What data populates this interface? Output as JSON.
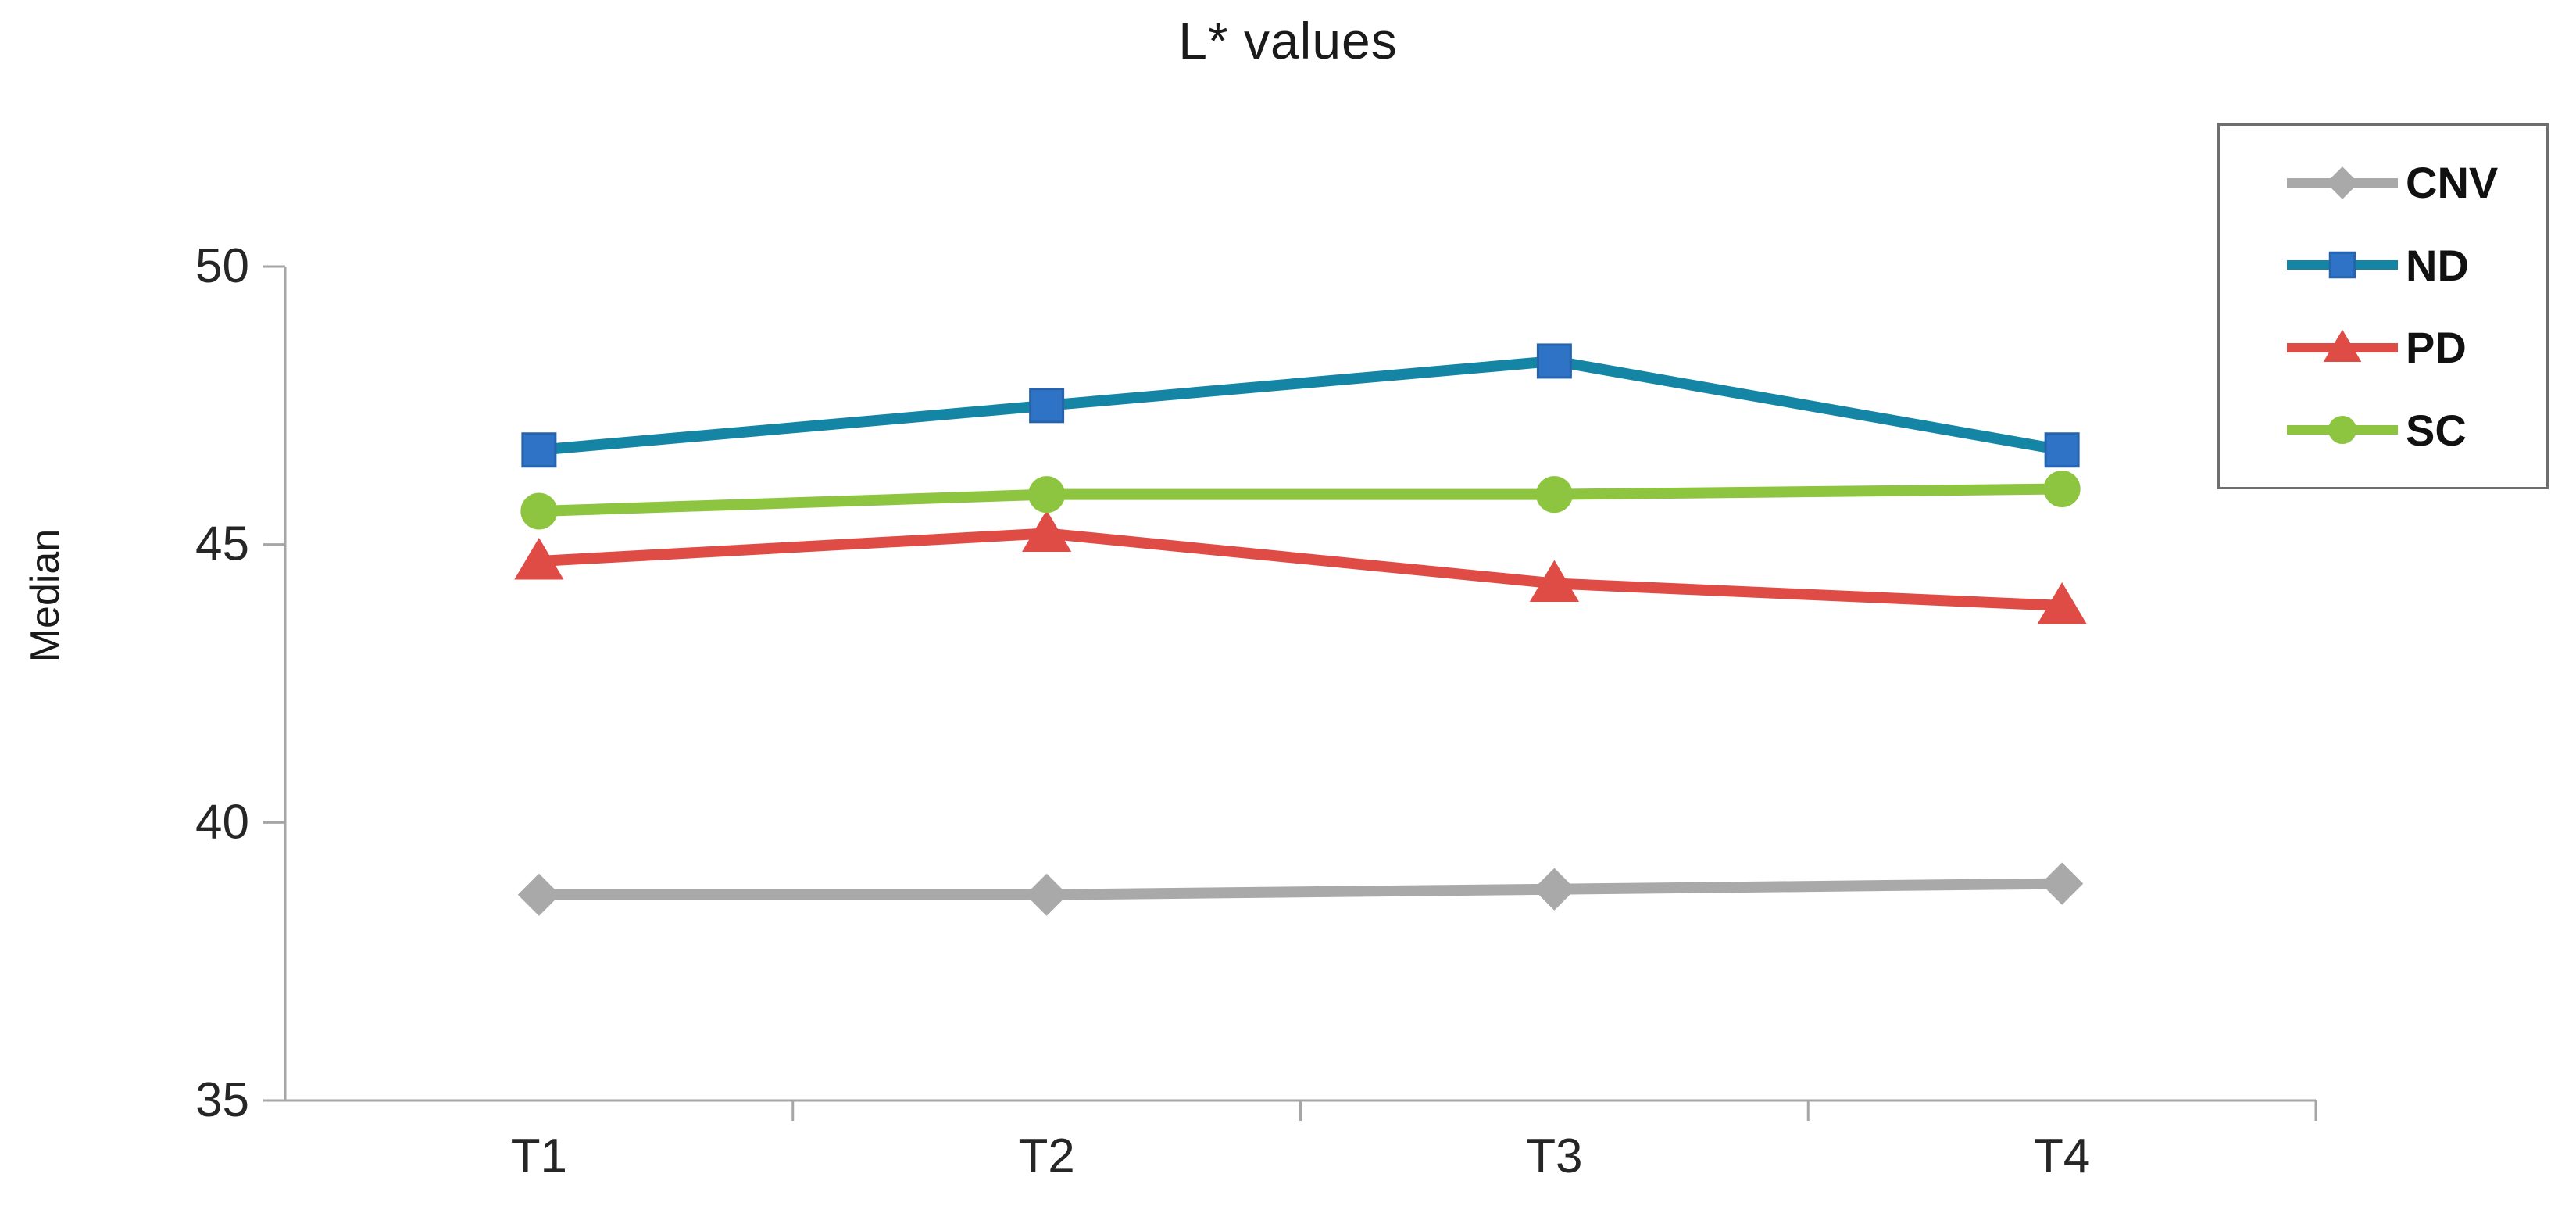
{
  "page": {
    "background": "#ffffff"
  },
  "chart_data": {
    "type": "line",
    "title": "L* values",
    "ylabel": "Median",
    "xlabel": "",
    "categories": [
      "T1",
      "T2",
      "T3",
      "T4"
    ],
    "yticks": [
      35,
      40,
      45,
      50
    ],
    "ylim": [
      35,
      50
    ],
    "grid": false,
    "legend_position": "right",
    "axis_color": "#a6a6a6",
    "text_color": "#262626",
    "legend_border_color": "#6e6e6e",
    "series": [
      {
        "name": "CNV",
        "marker": "diamond",
        "line_color": "#a9a9a9",
        "marker_color": "#a9a9a9",
        "marker_stroke": "#a9a9a9",
        "values": [
          38.7,
          38.7,
          38.8,
          38.9
        ]
      },
      {
        "name": "ND",
        "marker": "square",
        "line_color": "#1585a5",
        "marker_color": "#2e73c6",
        "marker_stroke": "#2763ab",
        "values": [
          46.7,
          47.5,
          48.3,
          46.7
        ]
      },
      {
        "name": "PD",
        "marker": "triangle",
        "line_color": "#df4b45",
        "marker_color": "#df4b45",
        "marker_stroke": "#df4b45",
        "values": [
          44.7,
          45.2,
          44.3,
          43.9
        ]
      },
      {
        "name": "SC",
        "marker": "circle",
        "line_color": "#8dc440",
        "marker_color": "#8dc440",
        "marker_stroke": "#8dc440",
        "values": [
          45.6,
          45.9,
          45.9,
          46.0
        ]
      }
    ]
  }
}
